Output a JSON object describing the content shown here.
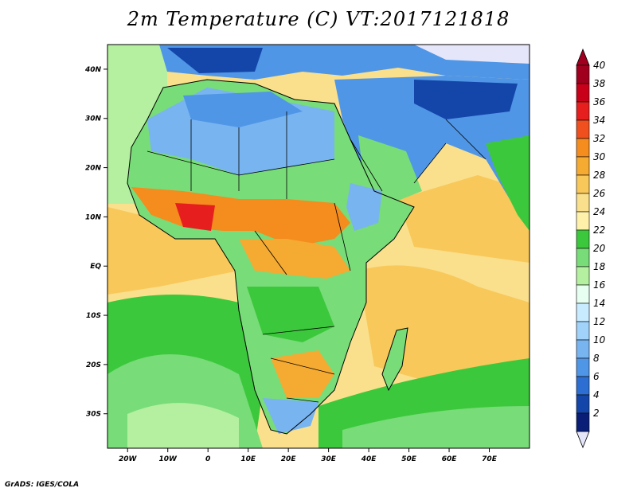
{
  "title": "2m Temperature (C) VT:2017121818",
  "credit": "GrADS: IGES/COLA",
  "map": {
    "projection": "latlon",
    "lon_range": [
      -25,
      80
    ],
    "lat_range": [
      -37,
      45
    ],
    "lat_ticks": [
      {
        "label": "40N",
        "lat": 40
      },
      {
        "label": "30N",
        "lat": 30
      },
      {
        "label": "20N",
        "lat": 20
      },
      {
        "label": "10N",
        "lat": 10
      },
      {
        "label": "EQ",
        "lat": 0
      },
      {
        "label": "10S",
        "lat": -10
      },
      {
        "label": "20S",
        "lat": -20
      },
      {
        "label": "30S",
        "lat": -30
      }
    ],
    "lon_ticks": [
      {
        "label": "20W",
        "lon": -20
      },
      {
        "label": "10W",
        "lon": -10
      },
      {
        "label": "0",
        "lon": 0
      },
      {
        "label": "10E",
        "lon": 10
      },
      {
        "label": "20E",
        "lon": 20
      },
      {
        "label": "30E",
        "lon": 30
      },
      {
        "label": "40E",
        "lon": 40
      },
      {
        "label": "50E",
        "lon": 50
      },
      {
        "label": "60E",
        "lon": 60
      },
      {
        "label": "70E",
        "lon": 70
      }
    ]
  },
  "colorbar": {
    "levels": [
      "40",
      "38",
      "36",
      "34",
      "32",
      "30",
      "28",
      "26",
      "24",
      "22",
      "20",
      "18",
      "16",
      "14",
      "12",
      "10",
      "8",
      "6",
      "4",
      "2"
    ],
    "colors": [
      "#a0001e",
      "#c8001a",
      "#e61e1e",
      "#f0501e",
      "#f58c1e",
      "#f5aa32",
      "#f8c85a",
      "#fae08c",
      "#fff0aa",
      "#3cc83c",
      "#78dc78",
      "#b4f0a0",
      "#e6fff0",
      "#c8ebff",
      "#a0d2fa",
      "#78b4f0",
      "#5096e6",
      "#2d6ed2",
      "#1446aa",
      "#0a1e78"
    ],
    "under_color": "#e6e6fa",
    "over_color": "#a0001e"
  }
}
